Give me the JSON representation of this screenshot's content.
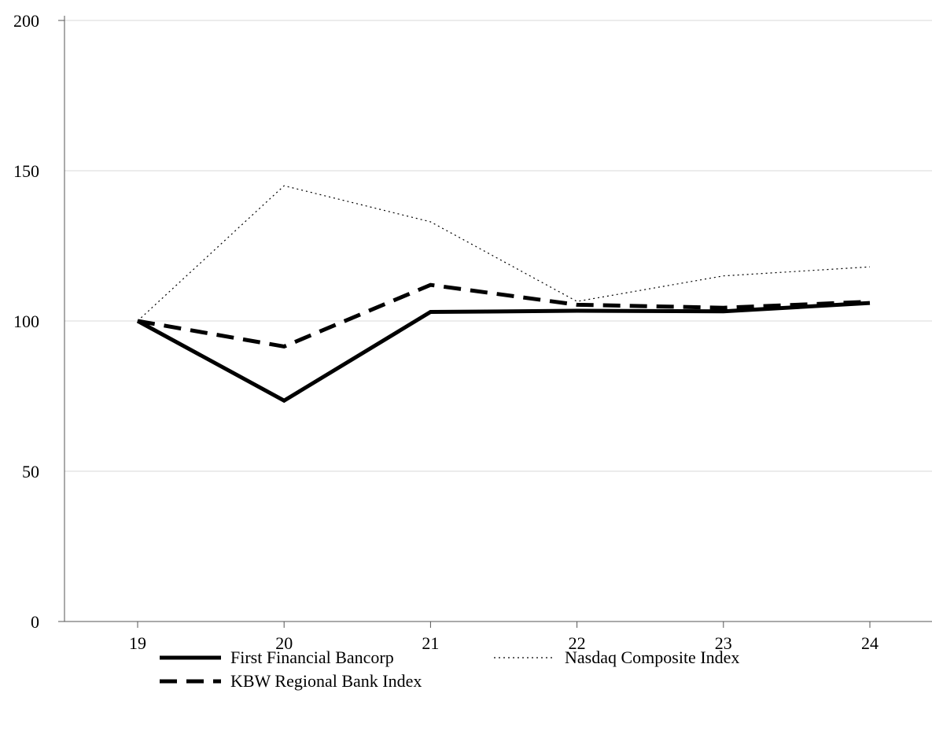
{
  "chart_data": {
    "type": "line",
    "x": [
      "19",
      "20",
      "21",
      "22",
      "23",
      "24"
    ],
    "ylim": [
      0,
      200
    ],
    "yticks": [
      "0",
      "50",
      "100",
      "150",
      "200"
    ],
    "grid": true,
    "legend_position": "bottom",
    "series": [
      {
        "name": "First Financial Bancorp",
        "style": "solid",
        "values": [
          100,
          73.5,
          103,
          103.4,
          103.2,
          106
        ]
      },
      {
        "name": "Nasdaq Composite Index",
        "style": "dotted",
        "values": [
          100,
          145,
          133,
          106.5,
          115,
          118
        ]
      },
      {
        "name": "KBW Regional Bank Index",
        "style": "dashed",
        "values": [
          100,
          91.5,
          112,
          105.4,
          104.4,
          106.4
        ]
      }
    ],
    "colors": {
      "line": "#000000",
      "grid": "#d9d9d9",
      "axis": "#555555"
    }
  }
}
